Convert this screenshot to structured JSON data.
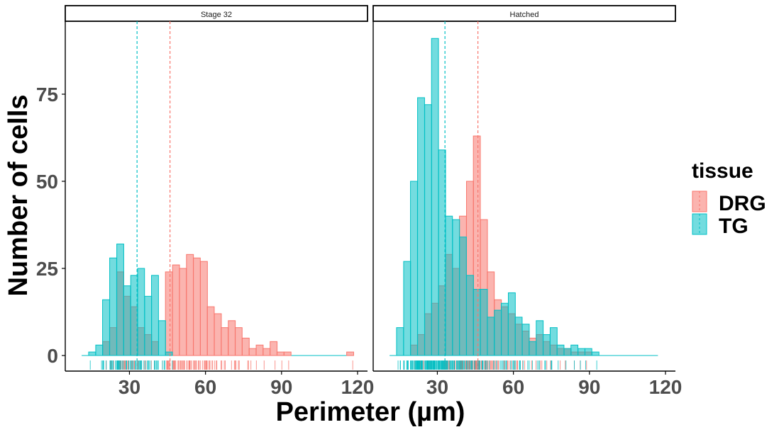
{
  "chart_data": {
    "type": "histogram",
    "xlabel": "Perimeter (µm)",
    "ylabel": "Number of cells",
    "xlim": [
      10,
      120
    ],
    "ylim": [
      0,
      95
    ],
    "x_ticks": [
      30,
      60,
      90,
      120
    ],
    "y_ticks": [
      0,
      25,
      50,
      75
    ],
    "bin_width": 2.75,
    "grid": false,
    "legend": {
      "title": "tissue",
      "position": "right",
      "entries": [
        {
          "name": "DRG",
          "fill": "#F8766D"
        },
        {
          "name": "TG",
          "fill": "#00BFC4"
        }
      ]
    },
    "panels": [
      {
        "strip": "Stage 32",
        "series": [
          {
            "name": "DRG",
            "color": "#F8766D",
            "mean": 46,
            "bin_starts": [
              19.4,
              22.2,
              25.0,
              27.7,
              30.5,
              33.2,
              36.0,
              38.7,
              41.5,
              44.2,
              47.0,
              49.7,
              52.5,
              55.2,
              58.0,
              60.7,
              63.5,
              66.2,
              69.0,
              71.7,
              74.5,
              77.2,
              80.0,
              82.7,
              85.5,
              88.2,
              91.0,
              115.7
            ],
            "counts": [
              4,
              8,
              24,
              17,
              14,
              8,
              6,
              4,
              0,
              24,
              26,
              25,
              29,
              28,
              27,
              14,
              12,
              8,
              10,
              8,
              5,
              2,
              3,
              2,
              4,
              1,
              1,
              1
            ]
          },
          {
            "name": "TG",
            "color": "#00BFC4",
            "mean": 33,
            "bin_starts": [
              13.9,
              16.7,
              19.4,
              22.2,
              25.0,
              27.7,
              30.5,
              33.2,
              36.0,
              38.7,
              41.5,
              44.2
            ],
            "counts": [
              1,
              3,
              16,
              28,
              32,
              20,
              23,
              25,
              17,
              23,
              10,
              1
            ]
          }
        ]
      },
      {
        "strip": "Hatched",
        "series": [
          {
            "name": "DRG",
            "color": "#F8766D",
            "mean": 46,
            "bin_starts": [
              19.4,
              22.2,
              25.0,
              27.7,
              30.5,
              33.2,
              36.0,
              38.7,
              41.5,
              44.2,
              47.0,
              49.7,
              52.5,
              55.2,
              58.0,
              60.7,
              63.5,
              66.2,
              69.0,
              71.7,
              74.5,
              77.2,
              80.0,
              82.7,
              85.5,
              88.2
            ],
            "counts": [
              3,
              6,
              12,
              15,
              20,
              29,
              25,
              40,
              50,
              63,
              39,
              24,
              16,
              14,
              12,
              9,
              7,
              5,
              6,
              4,
              3,
              2,
              2,
              1,
              1,
              1
            ]
          },
          {
            "name": "TG",
            "color": "#00BFC4",
            "mean": 33,
            "bin_starts": [
              13.9,
              16.7,
              19.4,
              22.2,
              25.0,
              27.7,
              30.5,
              33.2,
              36.0,
              38.7,
              41.5,
              44.2,
              47.0,
              49.7,
              52.5,
              55.2,
              58.0,
              60.7,
              63.5,
              66.2,
              69.0,
              71.7,
              74.5,
              77.2,
              80.0,
              82.7,
              85.5,
              88.2,
              91.0
            ],
            "counts": [
              8,
              27,
              50,
              74,
              72,
              91,
              59,
              40,
              39,
              34,
              23,
              19,
              19,
              11,
              13,
              15,
              18,
              11,
              9,
              4,
              10,
              6,
              8,
              3,
              2,
              3,
              2,
              2,
              1
            ]
          }
        ]
      }
    ]
  }
}
